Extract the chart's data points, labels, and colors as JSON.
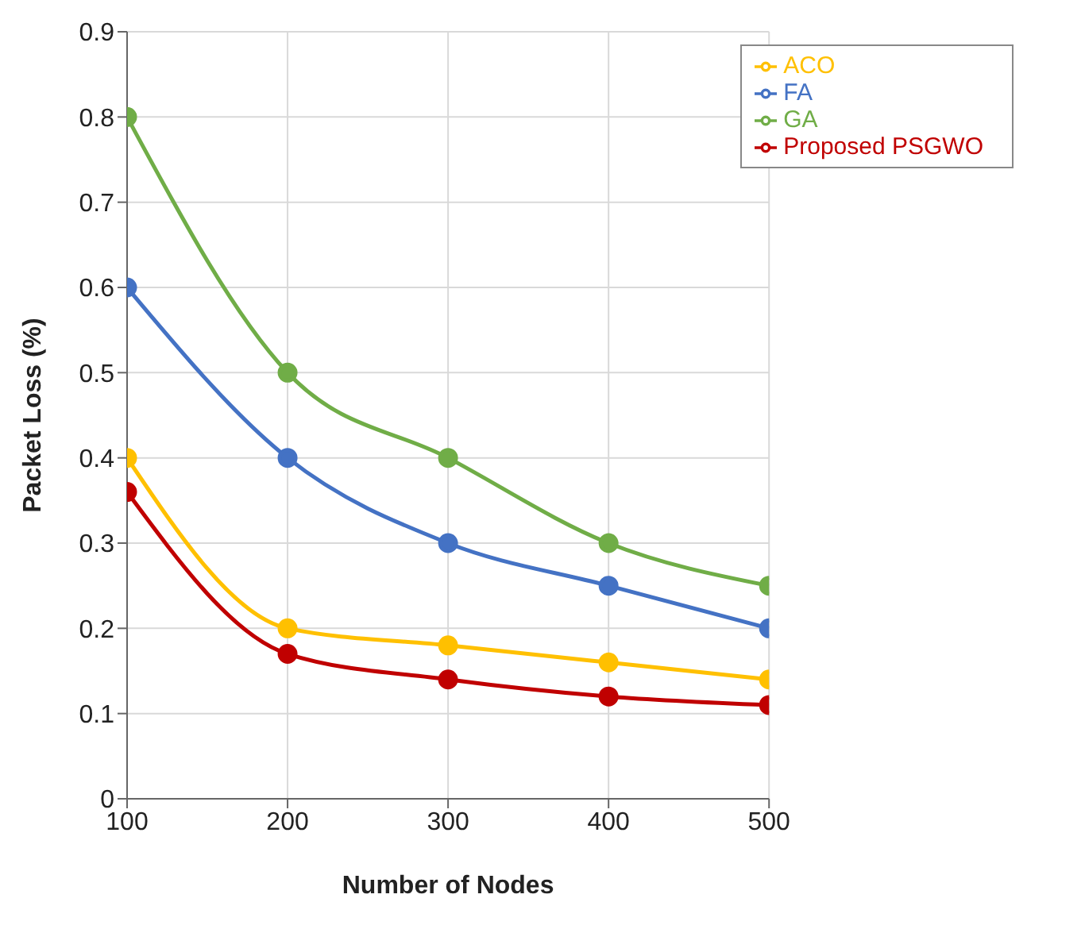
{
  "chart_data": {
    "type": "line",
    "xlabel": "Number of Nodes",
    "ylabel": "Packet Loss (%)",
    "x": [
      100,
      200,
      300,
      400,
      500
    ],
    "series": [
      {
        "name": "GA",
        "color": "#70ad47",
        "values": [
          0.8,
          0.5,
          0.4,
          0.3,
          0.25
        ]
      },
      {
        "name": "FA",
        "color": "#4472c4",
        "values": [
          0.6,
          0.4,
          0.3,
          0.25,
          0.2
        ]
      },
      {
        "name": "ACO",
        "color": "#ffc000",
        "values": [
          0.4,
          0.2,
          0.18,
          0.16,
          0.14
        ]
      },
      {
        "name": "Proposed PSGWO",
        "color": "#c00000",
        "values": [
          0.36,
          0.17,
          0.14,
          0.12,
          0.11
        ]
      }
    ],
    "xlim": [
      100,
      500
    ],
    "xticks": [
      100,
      200,
      300,
      400,
      500
    ],
    "ylim": [
      0,
      0.9
    ],
    "yticks": [
      0,
      0.1,
      0.2,
      0.3,
      0.4,
      0.5,
      0.6,
      0.7,
      0.8,
      0.9
    ],
    "grid": true,
    "legend": "top right",
    "marker": "circle",
    "line_style": "solid"
  }
}
